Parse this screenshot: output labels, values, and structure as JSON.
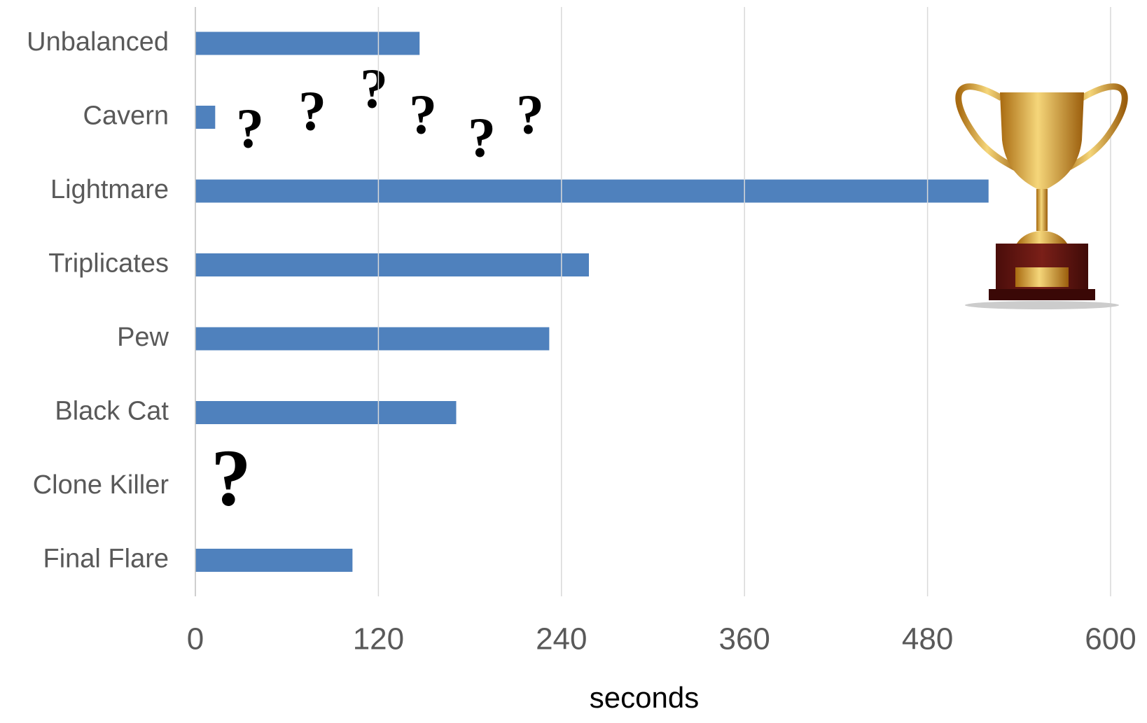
{
  "chart_data": {
    "type": "hbar",
    "x_label": "seconds",
    "categories": [
      "Unbalanced",
      "Cavern",
      "Lightmare",
      "Triplicates",
      "Pew",
      "Black Cat",
      "Clone Killer",
      "Final Flare"
    ],
    "values": [
      147,
      13,
      520,
      258,
      232,
      171,
      null,
      103
    ],
    "color": "#4f81bd",
    "xlim": [
      0,
      600
    ],
    "xticks": [
      0,
      120,
      240,
      360,
      480,
      600
    ],
    "grid": true,
    "annotations": [
      "?",
      "?",
      "?",
      "?",
      "?",
      "?",
      "?"
    ]
  }
}
